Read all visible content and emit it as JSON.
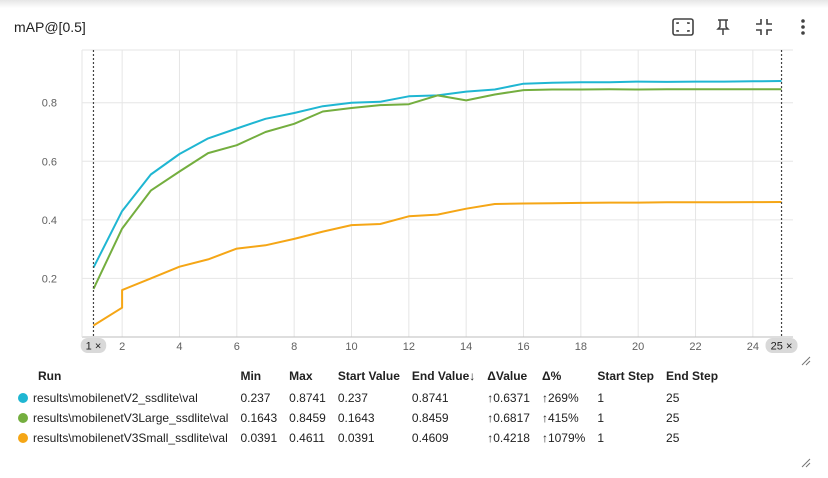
{
  "card": {
    "title": "mAP@[0.5]"
  },
  "toolbar": {
    "fit_icon": "fit-domain-icon",
    "pin_icon": "pin-icon",
    "collapse_icon": "collapse-icon",
    "more_icon": "more-vert-icon"
  },
  "colors": {
    "v2": "#1fb6d2",
    "v3large": "#74ae3f",
    "v3small": "#f5a616"
  },
  "chart_data": {
    "type": "line",
    "x": [
      1,
      2,
      3,
      4,
      5,
      6,
      7,
      8,
      9,
      10,
      11,
      12,
      13,
      14,
      15,
      16,
      17,
      18,
      19,
      20,
      21,
      22,
      23,
      24,
      25
    ],
    "xticks": [
      2,
      4,
      6,
      8,
      10,
      12,
      14,
      16,
      18,
      20,
      22,
      24
    ],
    "yticks": [
      0.2,
      0.4,
      0.6,
      0.8
    ],
    "ytick_labels": [
      "0.2",
      "0.4",
      "0.6",
      "0.8"
    ],
    "xlim": [
      0.6,
      25.4
    ],
    "ylim": [
      0,
      0.98
    ],
    "grid": true,
    "range_markers": [
      1,
      25
    ],
    "range_marker_labels": [
      "1 ×",
      "25 ×"
    ],
    "series": [
      {
        "name": "results\\mobilenetV2_ssdlite\\val",
        "color": "#1fb6d2",
        "values": [
          0.237,
          0.43,
          0.555,
          0.625,
          0.678,
          0.712,
          0.745,
          0.765,
          0.788,
          0.8,
          0.803,
          0.822,
          0.825,
          0.838,
          0.845,
          0.865,
          0.868,
          0.87,
          0.87,
          0.872,
          0.871,
          0.872,
          0.872,
          0.873,
          0.8741
        ]
      },
      {
        "name": "results\\mobilenetV3Large_ssdlite\\val",
        "color": "#74ae3f",
        "values": [
          0.1643,
          0.37,
          0.5,
          0.565,
          0.628,
          0.655,
          0.7,
          0.728,
          0.77,
          0.782,
          0.792,
          0.795,
          0.825,
          0.808,
          0.828,
          0.843,
          0.845,
          0.845,
          0.846,
          0.845,
          0.846,
          0.846,
          0.846,
          0.846,
          0.8459
        ]
      },
      {
        "name": "results\\mobilenetV3Small_ssdlite\\val",
        "color": "#f5a616",
        "step_x": 2,
        "step_from": 0.1,
        "values": [
          0.0391,
          0.16,
          0.2,
          0.24,
          0.265,
          0.302,
          0.313,
          0.335,
          0.36,
          0.382,
          0.386,
          0.412,
          0.418,
          0.438,
          0.454,
          0.456,
          0.457,
          0.458,
          0.459,
          0.459,
          0.46,
          0.46,
          0.46,
          0.4605,
          0.4609
        ]
      }
    ]
  },
  "table": {
    "headers": {
      "run": "Run",
      "min": "Min",
      "max": "Max",
      "start_value": "Start Value",
      "end_value": "End Value↓",
      "delta_value": "ΔValue",
      "delta_pct": "Δ%",
      "start_step": "Start Step",
      "end_step": "End Step"
    },
    "rows": [
      {
        "run": "results\\mobilenetV2_ssdlite\\val",
        "color": "#1fb6d2",
        "min": "0.237",
        "max": "0.8741",
        "start_value": "0.237",
        "end_value": "0.8741",
        "delta_value": "↑0.6371",
        "delta_pct": "↑269%",
        "start_step": "1",
        "end_step": "25"
      },
      {
        "run": "results\\mobilenetV3Large_ssdlite\\val",
        "color": "#74ae3f",
        "min": "0.1643",
        "max": "0.8459",
        "start_value": "0.1643",
        "end_value": "0.8459",
        "delta_value": "↑0.6817",
        "delta_pct": "↑415%",
        "start_step": "1",
        "end_step": "25"
      },
      {
        "run": "results\\mobilenetV3Small_ssdlite\\val",
        "color": "#f5a616",
        "min": "0.0391",
        "max": "0.4611",
        "start_value": "0.0391",
        "end_value": "0.4609",
        "delta_value": "↑0.4218",
        "delta_pct": "↑1079%",
        "start_step": "1",
        "end_step": "25"
      }
    ]
  }
}
